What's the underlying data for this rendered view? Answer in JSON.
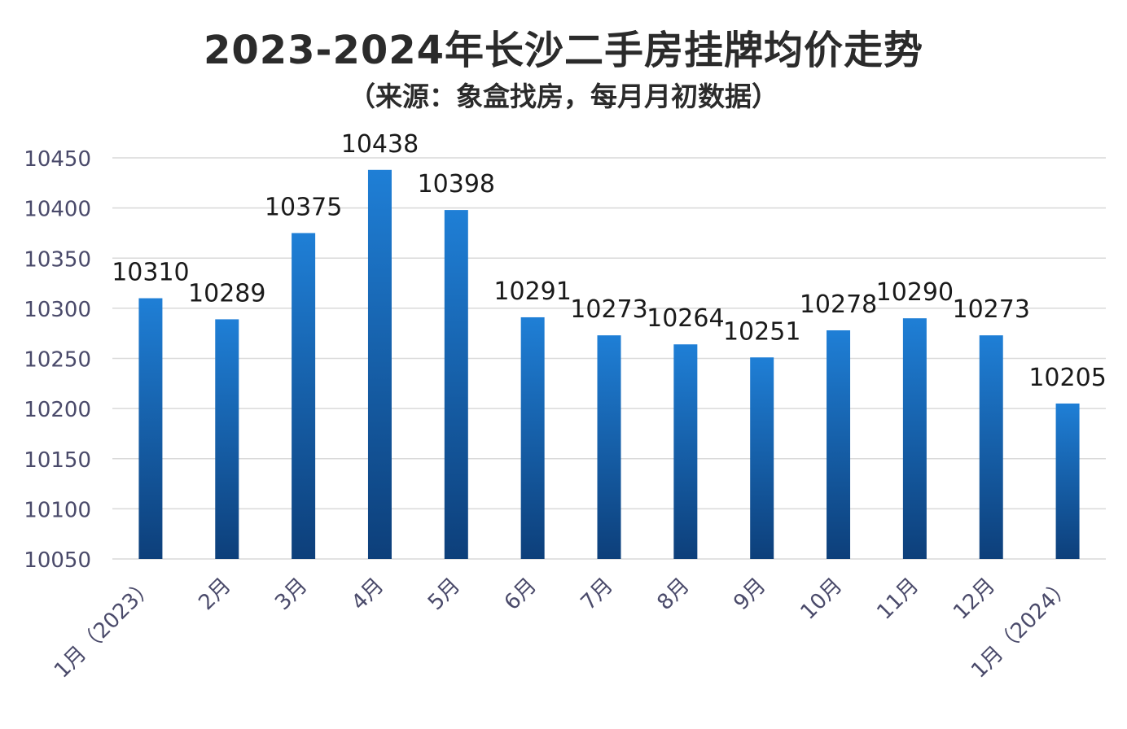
{
  "chart_data": {
    "type": "bar",
    "title": "2023-2024年长沙二手房挂牌均价走势",
    "subtitle": "（来源：象盒找房，每月月初数据）",
    "categories": [
      "1月（2023）",
      "2月",
      "3月",
      "4月",
      "5月",
      "6月",
      "7月",
      "8月",
      "9月",
      "10月",
      "11月",
      "12月",
      "1月（2024）"
    ],
    "series": [
      {
        "values": [
          10310,
          10289,
          10375,
          10438,
          10398,
          10291,
          10273,
          10264,
          10251,
          10278,
          10290,
          10273,
          10205
        ]
      }
    ],
    "data_labels": [
      "10310",
      "10289",
      "10375",
      "10438",
      "10398",
      "10291",
      "10273",
      "10264",
      "10251",
      "10278",
      "10290",
      "10273",
      "10205"
    ],
    "ylim": [
      10050,
      10450
    ],
    "yticks": [
      10050,
      10100,
      10150,
      10200,
      10250,
      10300,
      10350,
      10400,
      10450
    ],
    "grid": true,
    "legend": "none",
    "colors": {
      "bar_top": "#1f7fd6",
      "bar_bottom": "#0d3f7a",
      "grid": "#d9d9d9",
      "tick_text": "#4a4a6a",
      "label_text": "#1a1a1a"
    }
  }
}
